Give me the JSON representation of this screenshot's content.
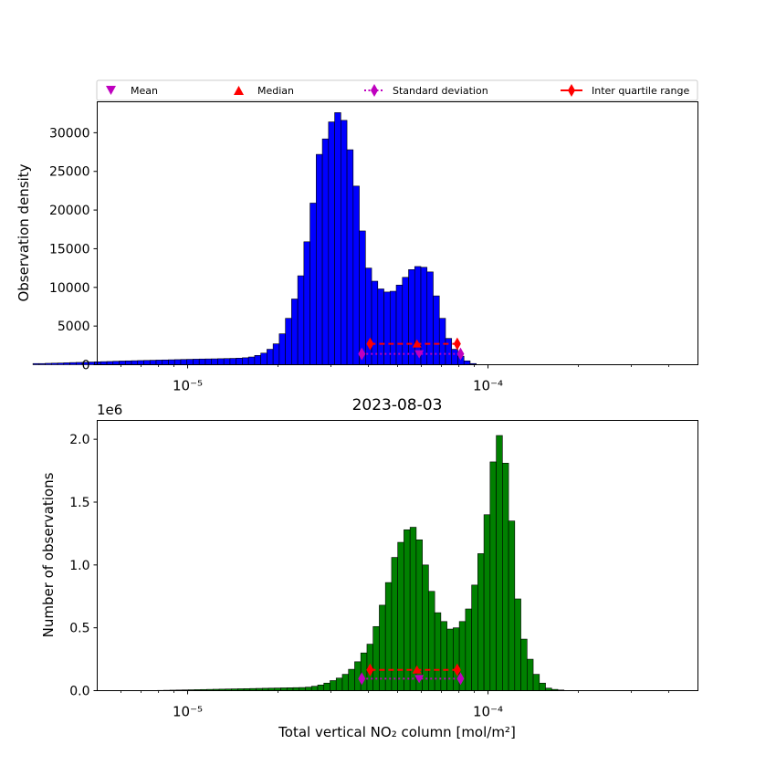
{
  "chart_data": [
    {
      "type": "bar",
      "xscale": "log",
      "xlim": [
        5e-06,
        0.0005
      ],
      "ylim": [
        0,
        34000
      ],
      "ylabel": "Observation density",
      "xlabel": "",
      "title": "",
      "bar_color": "#0000ff",
      "bins": {
        "log_start": -5.515,
        "log_step": 0.0205,
        "values": [
          150,
          150,
          180,
          200,
          220,
          250,
          280,
          300,
          320,
          350,
          380,
          400,
          420,
          450,
          480,
          500,
          520,
          540,
          560,
          580,
          600,
          620,
          640,
          660,
          680,
          700,
          720,
          740,
          750,
          760,
          780,
          800,
          820,
          850,
          900,
          1000,
          1200,
          1500,
          2000,
          2700,
          4000,
          6000,
          8500,
          11500,
          15900,
          20900,
          27200,
          29200,
          31400,
          32600,
          31600,
          27800,
          23100,
          17300,
          12500,
          10800,
          9800,
          9400,
          9500,
          10300,
          11300,
          12300,
          12700,
          12600,
          12000,
          8900,
          6000,
          3400,
          2000,
          1100,
          500,
          150
        ]
      },
      "x_ticks": [
        "10⁻⁵",
        "10⁻⁴"
      ],
      "y_ticks": [
        "0",
        "5000",
        "10000",
        "15000",
        "20000",
        "25000",
        "30000"
      ],
      "y_tick_values": [
        0,
        5000,
        10000,
        15000,
        20000,
        25000,
        30000
      ],
      "mean": 5.9e-05,
      "median": 5.8e-05,
      "std_range": [
        3.8e-05,
        8.1e-05
      ],
      "iqr": [
        4.05e-05,
        7.9e-05
      ],
      "marker_y": {
        "median": 2700,
        "mean": 1400
      }
    },
    {
      "type": "bar",
      "xscale": "log",
      "xlim": [
        5e-06,
        0.0005
      ],
      "ylim": [
        0,
        2.15
      ],
      "title": "2023-08-03",
      "ylabel": "Number of observations",
      "xlabel": "Total vertical NO₂ column [mol/m²]",
      "offset_text": "1e6",
      "bar_color": "#008000",
      "bins": {
        "log_start": -5.1,
        "log_step": 0.0205,
        "values": [
          0.002,
          0.003,
          0.004,
          0.005,
          0.006,
          0.007,
          0.008,
          0.009,
          0.01,
          0.011,
          0.012,
          0.013,
          0.014,
          0.015,
          0.016,
          0.017,
          0.018,
          0.019,
          0.02,
          0.021,
          0.022,
          0.023,
          0.024,
          0.025,
          0.028,
          0.035,
          0.045,
          0.06,
          0.08,
          0.1,
          0.13,
          0.17,
          0.23,
          0.3,
          0.37,
          0.51,
          0.68,
          0.86,
          1.06,
          1.18,
          1.28,
          1.3,
          1.2,
          1.0,
          0.79,
          0.62,
          0.55,
          0.49,
          0.5,
          0.55,
          0.65,
          0.84,
          1.09,
          1.4,
          1.82,
          2.03,
          1.81,
          1.35,
          0.73,
          0.41,
          0.25,
          0.13,
          0.06,
          0.02,
          0.01,
          0.005
        ]
      },
      "x_ticks": [
        "10⁻⁵",
        "10⁻⁴"
      ],
      "y_ticks": [
        "0.0",
        "0.5",
        "1.0",
        "1.5",
        "2.0"
      ],
      "y_tick_values": [
        0,
        0.5,
        1.0,
        1.5,
        2.0
      ],
      "mean": 5.9e-05,
      "median": 5.8e-05,
      "std_range": [
        3.8e-05,
        8.1e-05
      ],
      "iqr": [
        4.05e-05,
        7.9e-05
      ],
      "marker_y": {
        "median": 0.165,
        "mean": 0.095
      }
    }
  ],
  "legend": {
    "placement": "top",
    "items": [
      {
        "label": "Mean",
        "marker": "triangle-down-icon",
        "color": "#bf00bf"
      },
      {
        "label": "Median",
        "marker": "triangle-up-icon",
        "color": "#ff0000"
      },
      {
        "label": "Standard deviation",
        "marker": "diamond-dotted-icon",
        "color": "#bf00bf"
      },
      {
        "label": "Inter quartile range",
        "marker": "diamond-line-icon",
        "color": "#ff0000"
      }
    ]
  }
}
